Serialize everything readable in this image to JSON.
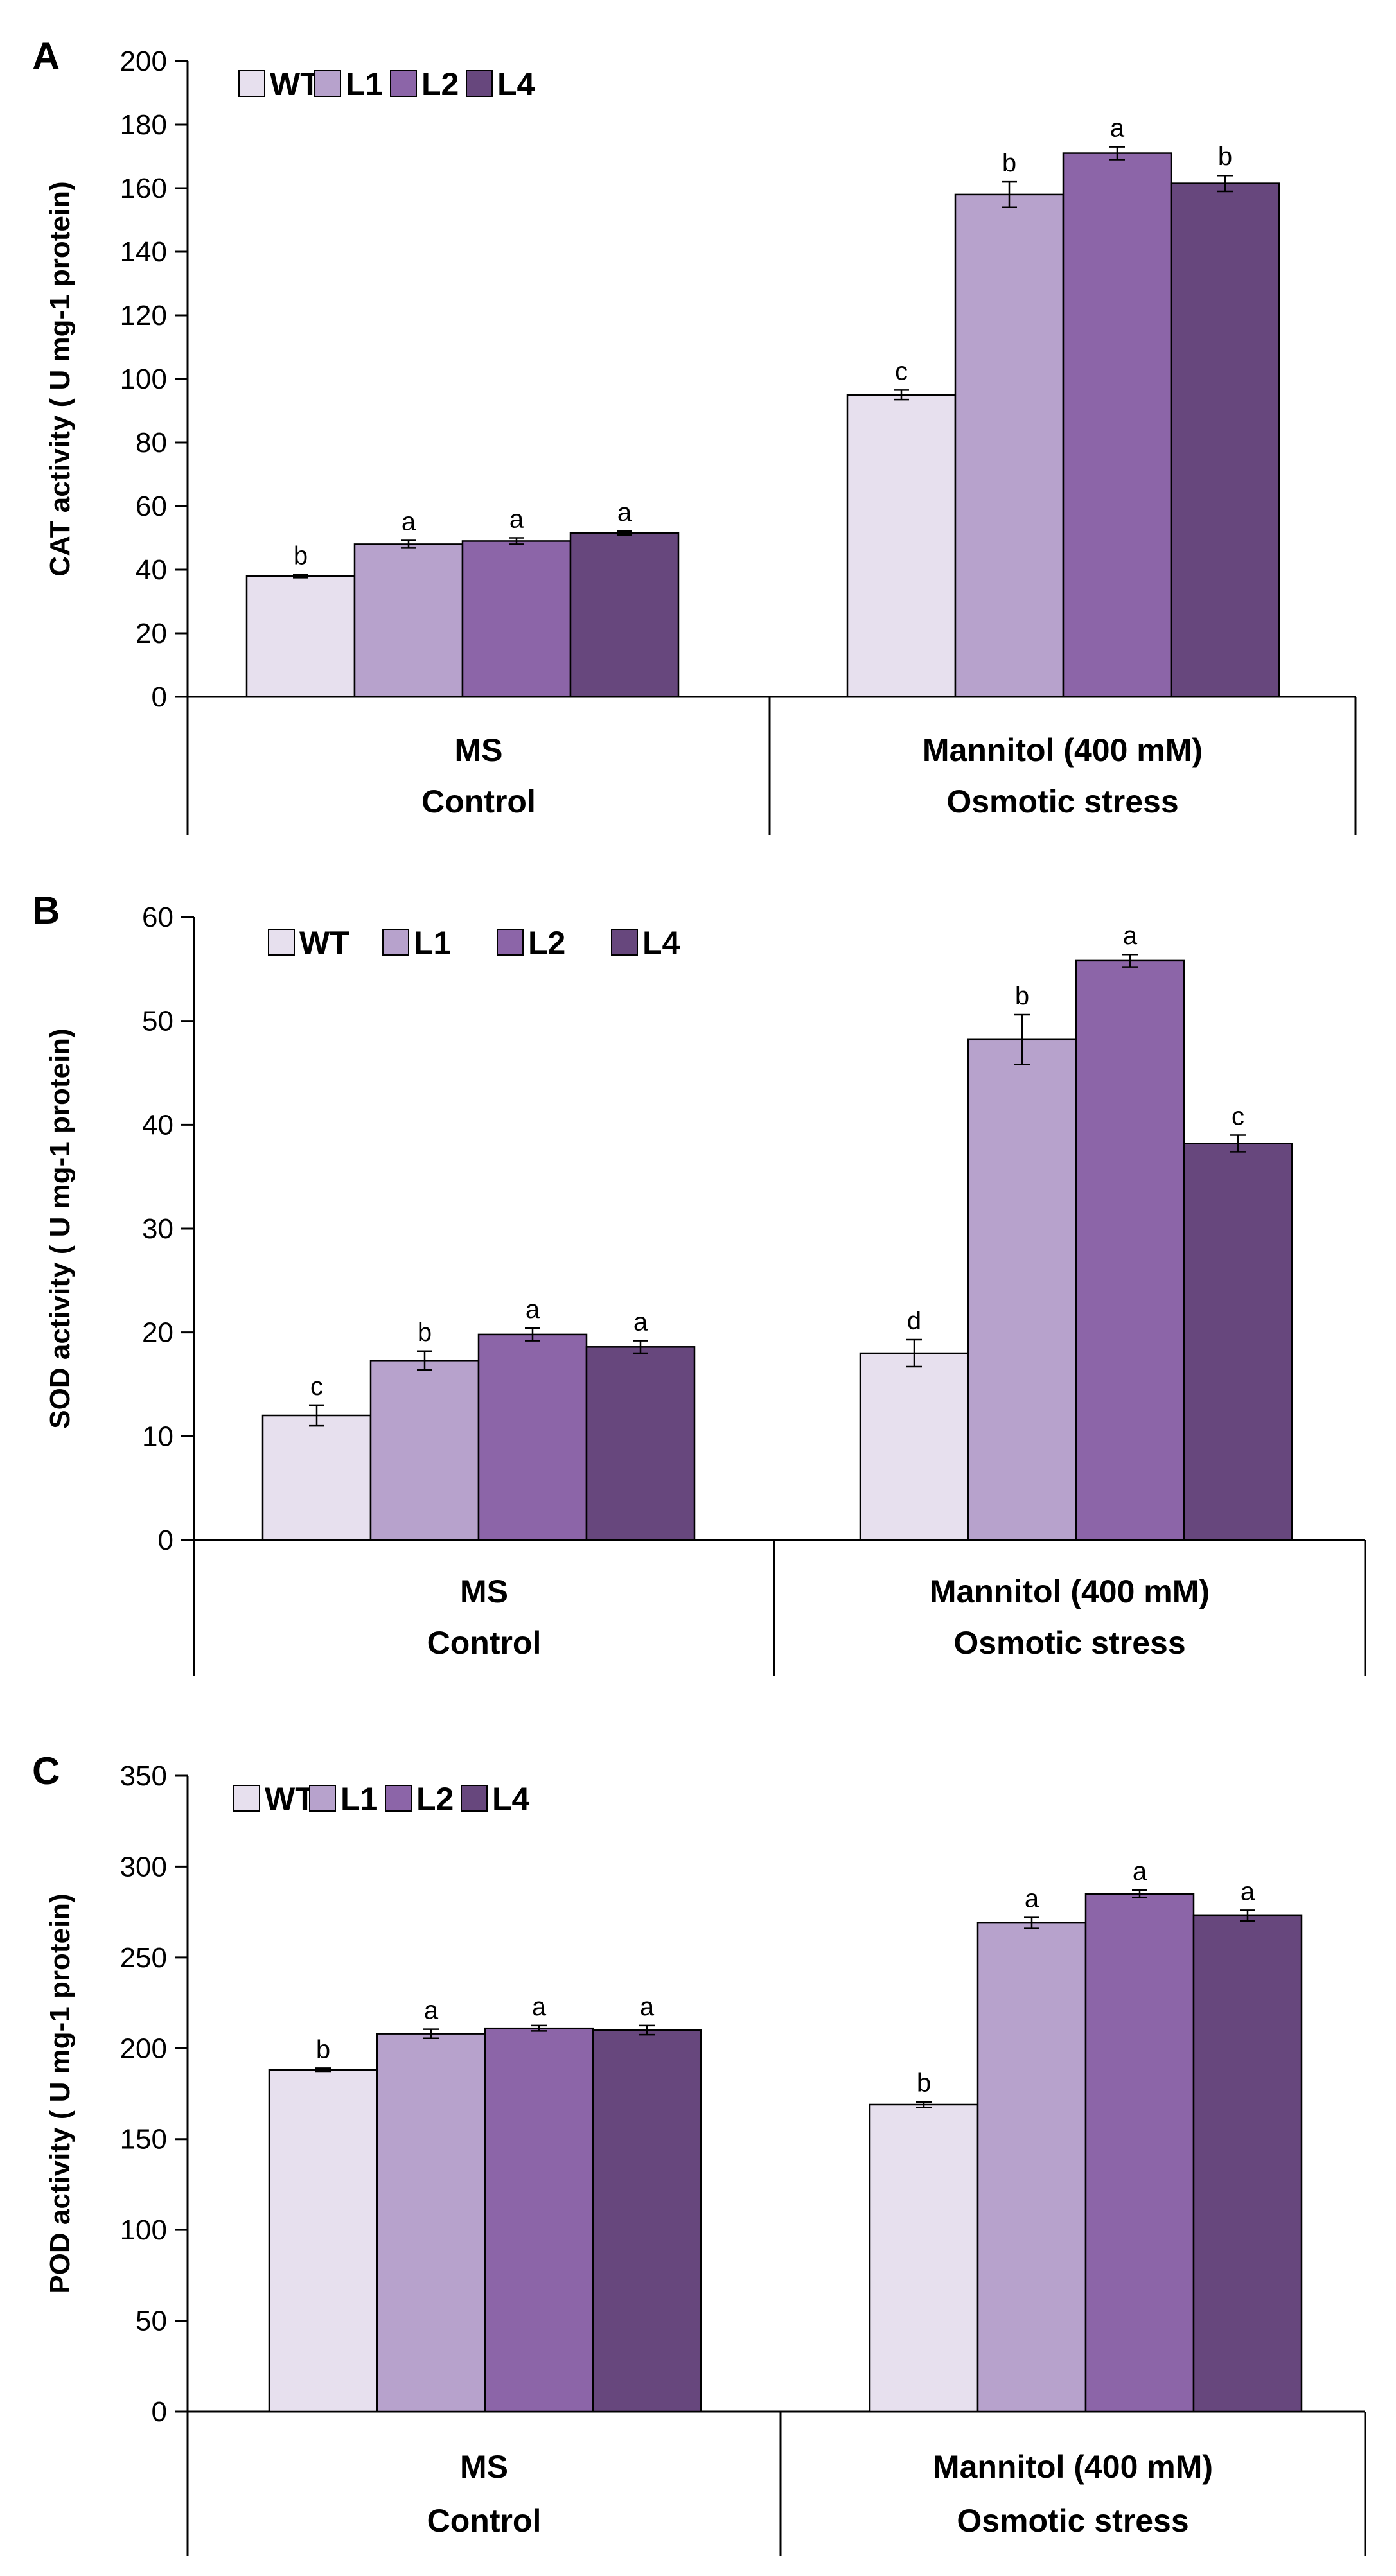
{
  "colors": {
    "WT": "#e7e0ee",
    "L1": "#b7a2cc",
    "L2": "#8c65a8",
    "L4": "#67477d",
    "axis": "#000000"
  },
  "chart_data": [
    {
      "panel": "A",
      "type": "bar",
      "ylabel": "CAT activity ( U mg-1 protein)",
      "ylim": [
        0,
        200
      ],
      "yticks": [
        0,
        20,
        40,
        60,
        80,
        100,
        120,
        140,
        160,
        180,
        200
      ],
      "legend": [
        "WT",
        "L1",
        "L2",
        "L4"
      ],
      "legend_position": "top-left",
      "groups": [
        {
          "treatment": "MS",
          "condition": "Control"
        },
        {
          "treatment": "Mannitol (400 mM)",
          "condition": "Osmotic stress"
        }
      ],
      "series": [
        {
          "name": "WT",
          "values": [
            38,
            95
          ],
          "errors": [
            0.5,
            1.5
          ],
          "labels": [
            "b",
            "c"
          ]
        },
        {
          "name": "L1",
          "values": [
            48,
            158
          ],
          "errors": [
            1.2,
            4
          ],
          "labels": [
            "a",
            "b"
          ]
        },
        {
          "name": "L2",
          "values": [
            49,
            171
          ],
          "errors": [
            1,
            2
          ],
          "labels": [
            "a",
            "a"
          ]
        },
        {
          "name": "L4",
          "values": [
            51.5,
            161.5
          ],
          "errors": [
            0.6,
            2.5
          ],
          "labels": [
            "a",
            "b"
          ]
        }
      ]
    },
    {
      "panel": "B",
      "type": "bar",
      "ylabel": "SOD activity ( U mg-1 protein)",
      "ylim": [
        0,
        60
      ],
      "yticks": [
        0,
        10,
        20,
        30,
        40,
        50,
        60
      ],
      "legend": [
        "WT",
        "L1",
        "L2",
        "L4"
      ],
      "legend_position": "top-left",
      "groups": [
        {
          "treatment": "MS",
          "condition": "Control"
        },
        {
          "treatment": "Mannitol (400 mM)",
          "condition": "Osmotic stress"
        }
      ],
      "series": [
        {
          "name": "WT",
          "values": [
            12,
            18
          ],
          "errors": [
            1,
            1.3
          ],
          "labels": [
            "c",
            "d"
          ]
        },
        {
          "name": "L1",
          "values": [
            17.3,
            48.2
          ],
          "errors": [
            0.9,
            2.4
          ],
          "labels": [
            "b",
            "b"
          ]
        },
        {
          "name": "L2",
          "values": [
            19.8,
            55.8
          ],
          "errors": [
            0.6,
            0.6
          ],
          "labels": [
            "a",
            "a"
          ]
        },
        {
          "name": "L4",
          "values": [
            18.6,
            38.2
          ],
          "errors": [
            0.6,
            0.8
          ],
          "labels": [
            "a",
            "c"
          ]
        }
      ]
    },
    {
      "panel": "C",
      "type": "bar",
      "ylabel": "POD activity ( U mg-1 protein)",
      "ylim": [
        0,
        350
      ],
      "yticks": [
        0,
        50,
        100,
        150,
        200,
        250,
        300,
        350
      ],
      "legend": [
        "WT",
        "L1",
        "L2",
        "L4"
      ],
      "legend_position": "top-left",
      "groups": [
        {
          "treatment": "MS",
          "condition": "Control"
        },
        {
          "treatment": "Mannitol (400 mM)",
          "condition": "Osmotic stress"
        }
      ],
      "series": [
        {
          "name": "WT",
          "values": [
            188,
            169
          ],
          "errors": [
            1,
            1.5
          ],
          "labels": [
            "b",
            "b"
          ]
        },
        {
          "name": "L1",
          "values": [
            208,
            269
          ],
          "errors": [
            2.5,
            3
          ],
          "labels": [
            "a",
            "a"
          ]
        },
        {
          "name": "L2",
          "values": [
            211,
            285
          ],
          "errors": [
            1.5,
            2
          ],
          "labels": [
            "a",
            "a"
          ]
        },
        {
          "name": "L4",
          "values": [
            210,
            273
          ],
          "errors": [
            2.5,
            3
          ],
          "labels": [
            "a",
            "a"
          ]
        }
      ]
    }
  ]
}
